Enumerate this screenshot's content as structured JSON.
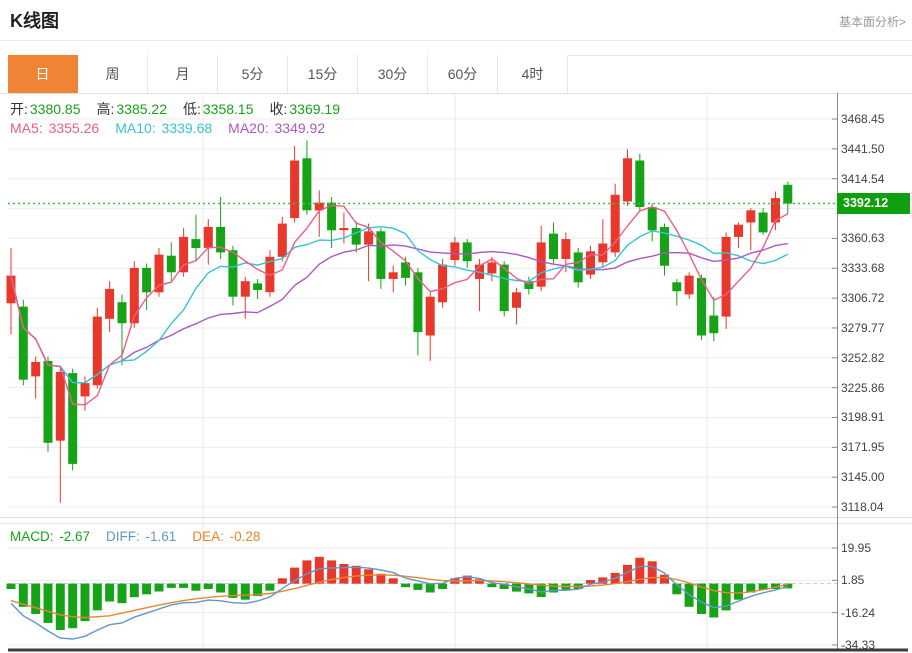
{
  "header": {
    "title": "K线图",
    "link_label": "基本面分析>"
  },
  "tabs": [
    {
      "name": "tab-day",
      "label": "日",
      "active": true
    },
    {
      "name": "tab-week",
      "label": "周",
      "active": false
    },
    {
      "name": "tab-month",
      "label": "月",
      "active": false
    },
    {
      "name": "tab-5min",
      "label": "5分",
      "active": false
    },
    {
      "name": "tab-15min",
      "label": "15分",
      "active": false
    },
    {
      "name": "tab-30min",
      "label": "30分",
      "active": false
    },
    {
      "name": "tab-60min",
      "label": "60分",
      "active": false
    },
    {
      "name": "tab-4hour",
      "label": "4时",
      "active": false
    }
  ],
  "info_bar": {
    "ohlc_label_color": "#333333",
    "ohlc_value_color": "#17a317",
    "ohlc": [
      {
        "name": "open",
        "label": "开:",
        "value": "3380.85"
      },
      {
        "name": "high",
        "label": "高:",
        "value": "3385.22"
      },
      {
        "name": "low",
        "label": "低:",
        "value": "3358.15"
      },
      {
        "name": "close",
        "label": "收:",
        "value": "3369.19"
      }
    ],
    "ma": [
      {
        "name": "ma5",
        "label": "MA5:",
        "value": "3355.26",
        "color": "#ef5d86"
      },
      {
        "name": "ma10",
        "label": "MA10:",
        "value": "3339.68",
        "color": "#36c3d8"
      },
      {
        "name": "ma20",
        "label": "MA20:",
        "value": "3349.92",
        "color": "#ae57c1"
      }
    ]
  },
  "macd_bar": [
    {
      "name": "macd",
      "label": "MACD:",
      "value": "-2.67",
      "color": "#17a317"
    },
    {
      "name": "diff",
      "label": "DIFF:",
      "value": "-1.61",
      "color": "#5f97cf"
    },
    {
      "name": "dea",
      "label": "DEA:",
      "value": "-0.28",
      "color": "#e9852e"
    }
  ],
  "price_tag": {
    "value": "3392.12",
    "bg": "#0ea00e"
  },
  "chart_data": {
    "type": "candlestick",
    "title": "K线图 (daily)",
    "price_axis": {
      "visible_ticks": [
        3468.45,
        3441.5,
        3414.54,
        3360.63,
        3333.68,
        3306.72,
        3279.77,
        3252.82,
        3225.86,
        3198.91,
        3171.95,
        3145.0,
        3118.04
      ],
      "top_anchor": 3468.45,
      "unit_per_grid": 26.955
    },
    "current_price": 3392.12,
    "ma_periods": [
      5,
      10,
      20
    ],
    "colors": {
      "up": "#e8382b",
      "down": "#17a317",
      "ma5": "#ef5d86",
      "ma10": "#36c3d8",
      "ma20": "#ae57c1",
      "diff_line": "#5f97cf",
      "dea_line": "#e9852e",
      "grid": "#ededed",
      "vgrid": "#e7e7e7",
      "axis": "#8a8a8a",
      "price_line": "#44bb44",
      "zero_dash": "#b9cbdc",
      "bottom_bar": "#3c3c3c"
    },
    "candles": [
      [
        3302,
        3352,
        3274,
        3327
      ],
      [
        3299,
        3305,
        3228,
        3233
      ],
      [
        3236,
        3254,
        3216,
        3249
      ],
      [
        3250,
        3254,
        3168,
        3176
      ],
      [
        3178,
        3245,
        3122,
        3240
      ],
      [
        3239,
        3243,
        3151,
        3157
      ],
      [
        3218,
        3236,
        3205,
        3230
      ],
      [
        3228,
        3298,
        3225,
        3290
      ],
      [
        3288,
        3322,
        3276,
        3315
      ],
      [
        3303,
        3310,
        3246,
        3284
      ],
      [
        3284,
        3340,
        3280,
        3334
      ],
      [
        3334,
        3338,
        3296,
        3312
      ],
      [
        3312,
        3352,
        3308,
        3346
      ],
      [
        3345,
        3357,
        3322,
        3330
      ],
      [
        3330,
        3370,
        3326,
        3362
      ],
      [
        3360,
        3382,
        3340,
        3352
      ],
      [
        3352,
        3378,
        3337,
        3371
      ],
      [
        3371,
        3398,
        3342,
        3348
      ],
      [
        3350,
        3354,
        3300,
        3308
      ],
      [
        3308,
        3326,
        3288,
        3322
      ],
      [
        3320,
        3324,
        3306,
        3314
      ],
      [
        3312,
        3350,
        3308,
        3344
      ],
      [
        3344,
        3380,
        3340,
        3374
      ],
      [
        3379,
        3444,
        3375,
        3431
      ],
      [
        3433,
        3449,
        3382,
        3386
      ],
      [
        3386,
        3404,
        3362,
        3393
      ],
      [
        3393,
        3398,
        3352,
        3368
      ],
      [
        3368,
        3384,
        3356,
        3370
      ],
      [
        3370,
        3376,
        3348,
        3355
      ],
      [
        3355,
        3374,
        3322,
        3367
      ],
      [
        3367,
        3370,
        3315,
        3324
      ],
      [
        3324,
        3336,
        3312,
        3330
      ],
      [
        3339,
        3344,
        3318,
        3325
      ],
      [
        3330,
        3334,
        3255,
        3276
      ],
      [
        3273,
        3312,
        3250,
        3308
      ],
      [
        3303,
        3342,
        3298,
        3337
      ],
      [
        3341,
        3362,
        3336,
        3357
      ],
      [
        3357,
        3360,
        3334,
        3340
      ],
      [
        3324,
        3342,
        3295,
        3337
      ],
      [
        3329,
        3344,
        3322,
        3339
      ],
      [
        3337,
        3340,
        3290,
        3295
      ],
      [
        3298,
        3316,
        3283,
        3312
      ],
      [
        3322,
        3326,
        3310,
        3315
      ],
      [
        3317,
        3372,
        3313,
        3357
      ],
      [
        3365,
        3375,
        3338,
        3342
      ],
      [
        3342,
        3366,
        3330,
        3360
      ],
      [
        3348,
        3352,
        3316,
        3321
      ],
      [
        3328,
        3354,
        3324,
        3349
      ],
      [
        3339,
        3378,
        3335,
        3356
      ],
      [
        3348,
        3410,
        3344,
        3400
      ],
      [
        3394,
        3441,
        3390,
        3433
      ],
      [
        3431,
        3437,
        3385,
        3389
      ],
      [
        3389,
        3392,
        3358,
        3368
      ],
      [
        3371,
        3374,
        3327,
        3336
      ],
      [
        3321,
        3324,
        3300,
        3313
      ],
      [
        3310,
        3330,
        3306,
        3327
      ],
      [
        3325,
        3328,
        3269,
        3273
      ],
      [
        3291,
        3308,
        3268,
        3275
      ],
      [
        3290,
        3366,
        3279,
        3362
      ],
      [
        3362,
        3375,
        3352,
        3373
      ],
      [
        3375,
        3388,
        3350,
        3386
      ],
      [
        3384,
        3388,
        3364,
        3366
      ],
      [
        3375,
        3403,
        3368,
        3397
      ],
      [
        3409,
        3412,
        3383,
        3392
      ]
    ],
    "macd": {
      "ticks": [
        19.95,
        1.85,
        -16.24,
        -34.33
      ],
      "values": {
        "macd": -2.67,
        "diff": -1.61,
        "dea": -0.28
      },
      "bars": [
        -3,
        -13,
        -17,
        -22,
        -26,
        -25,
        -21,
        -15,
        -10,
        -11,
        -7.6,
        -6,
        -4.4,
        -2.4,
        -2.4,
        -4,
        -3,
        -5,
        -8,
        -9,
        -7,
        -4,
        3,
        9,
        13,
        15,
        13,
        11,
        10,
        8,
        5.5,
        3,
        -2,
        -3.5,
        -5,
        -3,
        3,
        4.5,
        2.5,
        -2,
        -3,
        -4.5,
        -5.5,
        -7.5,
        -5,
        -4,
        -3,
        2,
        3.5,
        6,
        10.5,
        14.5,
        12.5,
        5,
        -6,
        -13,
        -17,
        -19,
        -15,
        -9,
        -5,
        -3.5,
        -3,
        -2.67
      ],
      "diff": [
        -11,
        -18,
        -22,
        -26.5,
        -30.5,
        -31,
        -29.5,
        -26,
        -23,
        -22,
        -18.8,
        -16.5,
        -14.2,
        -11.9,
        -10.7,
        -10.5,
        -9.2,
        -9.6,
        -10.7,
        -11,
        -9.7,
        -7.5,
        -2.8,
        1.7,
        5.5,
        8.3,
        8.8,
        8.9,
        9.2,
        8.7,
        7.65,
        6.2,
        3.1,
        1.55,
        -0.1,
        0.2,
        3,
        3.85,
        2.95,
        0.5,
        -0.4,
        -1.75,
        -2.95,
        -4.65,
        -3.9,
        -3.6,
        -3.1,
        -0.3,
        0.95,
        3,
        6.35,
        9.65,
        9.65,
        5.9,
        -0.7,
        -6.1,
        -10.4,
        -13.4,
        -12.6,
        -9.8,
        -7.1,
        -5.15,
        -3.5,
        -1.61
      ],
      "dea": [
        -9.5,
        -11.5,
        -13.5,
        -15.5,
        -17.5,
        -18.5,
        -19,
        -18.5,
        -18,
        -16.5,
        -15,
        -13.5,
        -12,
        -10.7,
        -9.5,
        -8.5,
        -7.7,
        -7.1,
        -6.7,
        -6.5,
        -6.2,
        -5.5,
        -4.3,
        -2.8,
        -1,
        0.8,
        2.3,
        3.4,
        4.2,
        4.7,
        4.9,
        4.7,
        4.1,
        3.3,
        2.4,
        1.7,
        1.5,
        1.6,
        1.7,
        1.5,
        1.1,
        0.5,
        -0.2,
        -0.9,
        -1.4,
        -1.6,
        -1.6,
        -1.3,
        -0.8,
        0,
        1.1,
        2.4,
        3.4,
        3.4,
        2.3,
        0.4,
        -1.9,
        -3.9,
        -5.1,
        -5.3,
        -4.6,
        -3.4,
        -2.0,
        -0.28
      ]
    }
  }
}
